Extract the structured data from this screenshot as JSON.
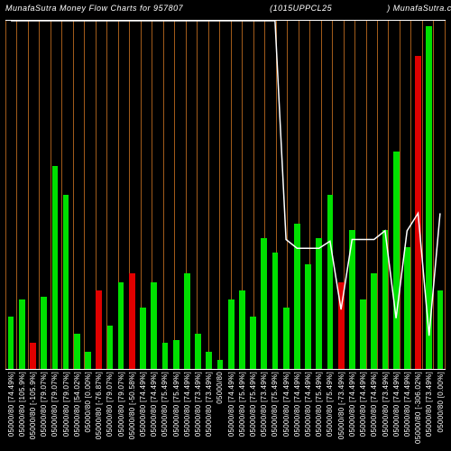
{
  "title": {
    "left": "MunafaSutra   Money Flow   Charts for 957807",
    "mid": "(1015UPPCL25",
    "right": ") MunafaSutra.com"
  },
  "chart": {
    "type": "bar+line",
    "background_color": "#000000",
    "grid_color": "#a05a1a",
    "line_color": "#ffffff",
    "text_color": "#ffffff",
    "green": "#00e000",
    "red": "#e00000",
    "title_fontsize": 9,
    "label_fontsize": 8,
    "bar_max_value": 120,
    "line_ylim": [
      90,
      110
    ],
    "data": [
      {
        "label": "05000/80 [74.49%]",
        "bar": 18,
        "color": "green",
        "line": 110
      },
      {
        "label": "05000/80 [105.9%]",
        "bar": 24,
        "color": "green",
        "line": 110
      },
      {
        "label": "05000/80 [-105.9%]",
        "bar": 9,
        "color": "red",
        "line": 110
      },
      {
        "label": "05000/80 [79.07%]",
        "bar": 25,
        "color": "green",
        "line": 110
      },
      {
        "label": "05000/80 [79.07%]",
        "bar": 70,
        "color": "green",
        "line": 110
      },
      {
        "label": "05000/80 [79.07%]",
        "bar": 60,
        "color": "green",
        "line": 110
      },
      {
        "label": "05000/80 [54.02%]",
        "bar": 12,
        "color": "green",
        "line": 110
      },
      {
        "label": "05000/80 [0.00%]",
        "bar": 6,
        "color": "green",
        "line": 110
      },
      {
        "label": "05000/80 [-76.87%]",
        "bar": 27,
        "color": "red",
        "line": 110
      },
      {
        "label": "05000/80 [79.07%]",
        "bar": 15,
        "color": "green",
        "line": 110
      },
      {
        "label": "05000/80 [79.07%]",
        "bar": 30,
        "color": "green",
        "line": 110
      },
      {
        "label": "05000/80 [-50.58%]",
        "bar": 33,
        "color": "red",
        "line": 110
      },
      {
        "label": "05000/80 [74.49%]",
        "bar": 21,
        "color": "green",
        "line": 110
      },
      {
        "label": "05000/80 [74.49%]",
        "bar": 30,
        "color": "green",
        "line": 110
      },
      {
        "label": "05000/80 [75.49%]",
        "bar": 9,
        "color": "green",
        "line": 110
      },
      {
        "label": "05000/80 [75.49%]",
        "bar": 10,
        "color": "green",
        "line": 110
      },
      {
        "label": "05000/80 [74.49%]",
        "bar": 33,
        "color": "green",
        "line": 110
      },
      {
        "label": "05000/80 [73.49%]",
        "bar": 12,
        "color": "green",
        "line": 110
      },
      {
        "label": "05000/80 [73.49%]",
        "bar": 6,
        "color": "green",
        "line": 110
      },
      {
        "label": "05000/80 ",
        "bar": 3,
        "color": "green",
        "line": 110
      },
      {
        "label": "05000/80 [74.49%]",
        "bar": 24,
        "color": "green",
        "line": 110
      },
      {
        "label": "05000/80 [75.49%]",
        "bar": 27,
        "color": "green",
        "line": 110
      },
      {
        "label": "05000/80 [75.49%]",
        "bar": 18,
        "color": "green",
        "line": 110
      },
      {
        "label": "05000/80 [73.49%]",
        "bar": 45,
        "color": "green",
        "line": 110
      },
      {
        "label": "05000/80 [75.49%]",
        "bar": 40,
        "color": "green",
        "line": 110
      },
      {
        "label": "05000/80 [74.49%]",
        "bar": 21,
        "color": "green",
        "line": 97.5
      },
      {
        "label": "05000/80 [74.49%]",
        "bar": 50,
        "color": "green",
        "line": 97
      },
      {
        "label": "05000/80 [74.49%]",
        "bar": 36,
        "color": "green",
        "line": 97
      },
      {
        "label": "05000/80 [75.49%]",
        "bar": 45,
        "color": "green",
        "line": 97
      },
      {
        "label": "05000/80 [75.49%]",
        "bar": 60,
        "color": "green",
        "line": 97.4
      },
      {
        "label": "05000/80 [-73.49%]",
        "bar": 30,
        "color": "red",
        "line": 93.5
      },
      {
        "label": "05000/80 [74.49%]",
        "bar": 48,
        "color": "green",
        "line": 97.5
      },
      {
        "label": "05000/80 [74.49%]",
        "bar": 24,
        "color": "green",
        "line": 97.5
      },
      {
        "label": "05000/80 [74.49%]",
        "bar": 33,
        "color": "green",
        "line": 97.5
      },
      {
        "label": "05000/80 [73.49%]",
        "bar": 48,
        "color": "green",
        "line": 98
      },
      {
        "label": "05000/80 [74.49%]",
        "bar": 75,
        "color": "green",
        "line": 93
      },
      {
        "label": "05000/80 [74.49%]",
        "bar": 42,
        "color": "green",
        "line": 98
      },
      {
        "label": "05000/80 [-306.02%]",
        "bar": 108,
        "color": "red",
        "line": 99
      },
      {
        "label": "05000/80 [73.49%]",
        "bar": 118,
        "color": "green",
        "line": 92
      },
      {
        "label": "05000/80 [0.00%]",
        "bar": 27,
        "color": "green",
        "line": 99
      }
    ]
  }
}
